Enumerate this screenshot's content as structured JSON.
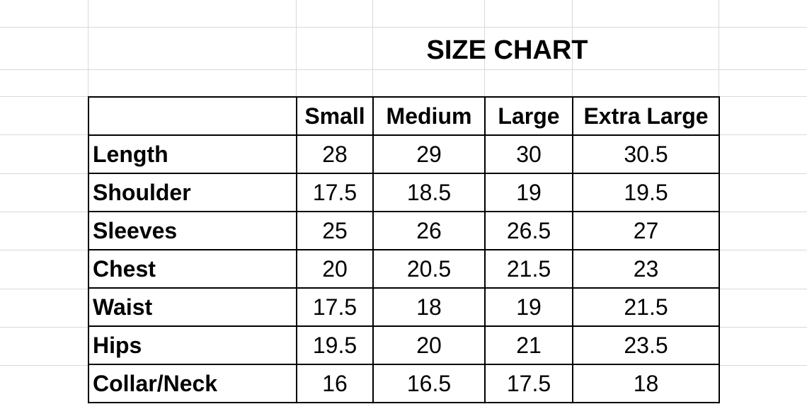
{
  "title": "SIZE CHART",
  "columns": [
    "",
    "Small",
    "Medium",
    "Large",
    "Extra Large"
  ],
  "rows": [
    {
      "label": "Length",
      "values": [
        "28",
        "29",
        "30",
        "30.5"
      ]
    },
    {
      "label": "Shoulder",
      "values": [
        "17.5",
        "18.5",
        "19",
        "19.5"
      ]
    },
    {
      "label": "Sleeves",
      "values": [
        "25",
        "26",
        "26.5",
        "27"
      ]
    },
    {
      "label": "Chest",
      "values": [
        "20",
        "20.5",
        "21.5",
        "23"
      ]
    },
    {
      "label": "Waist",
      "values": [
        "17.5",
        "18",
        "19",
        "21.5"
      ]
    },
    {
      "label": "Hips",
      "values": [
        "19.5",
        "20",
        "21",
        "23.5"
      ]
    },
    {
      "label": "Collar/Neck",
      "values": [
        "16",
        "16.5",
        "17.5",
        "18"
      ]
    }
  ],
  "colors": {
    "gridline": "#d9d9d9",
    "border": "#000000",
    "background": "#ffffff"
  }
}
